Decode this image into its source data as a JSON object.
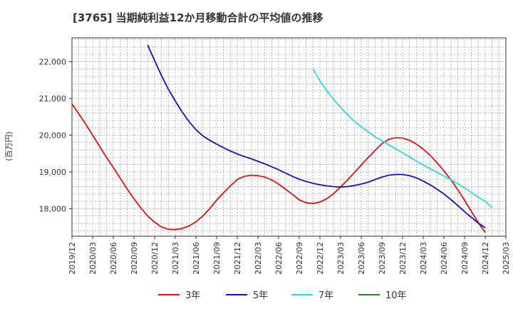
{
  "chart_data": {
    "type": "line",
    "title": "[3765]  当期純利益12か月移動合計の平均値の推移",
    "ylabel": "(百万円)",
    "xlabel": "",
    "ylim": [
      17250,
      22650
    ],
    "yticks": [
      18000,
      19000,
      20000,
      21000,
      22000
    ],
    "ytick_labels": [
      "18,000",
      "19,000",
      "20,000",
      "21,000",
      "22,000"
    ],
    "xlim": [
      "2019-12",
      "2025-03"
    ],
    "xticks": [
      "2019/12",
      "2020/03",
      "2020/06",
      "2020/09",
      "2020/12",
      "2021/03",
      "2021/06",
      "2021/09",
      "2021/12",
      "2022/03",
      "2022/06",
      "2022/09",
      "2022/12",
      "2023/03",
      "2023/06",
      "2023/09",
      "2023/12",
      "2024/03",
      "2024/06",
      "2024/09",
      "2024/12",
      "2025/03"
    ],
    "grid": true,
    "legend_position": "bottom",
    "series": [
      {
        "name": "3年",
        "color": "#dd1111",
        "points": [
          [
            "2019-12",
            20850
          ],
          [
            "2020-01",
            20580
          ],
          [
            "2020-02",
            20300
          ],
          [
            "2020-03",
            20000
          ],
          [
            "2020-04",
            19700
          ],
          [
            "2020-05",
            19400
          ],
          [
            "2020-06",
            19120
          ],
          [
            "2020-07",
            18830
          ],
          [
            "2020-08",
            18540
          ],
          [
            "2020-09",
            18270
          ],
          [
            "2020-10",
            18020
          ],
          [
            "2020-11",
            17800
          ],
          [
            "2020-12",
            17630
          ],
          [
            "2021-01",
            17500
          ],
          [
            "2021-02",
            17440
          ],
          [
            "2021-03",
            17430
          ],
          [
            "2021-04",
            17460
          ],
          [
            "2021-05",
            17530
          ],
          [
            "2021-06",
            17640
          ],
          [
            "2021-07",
            17800
          ],
          [
            "2021-08",
            18000
          ],
          [
            "2021-09",
            18230
          ],
          [
            "2021-10",
            18430
          ],
          [
            "2021-11",
            18620
          ],
          [
            "2021-12",
            18790
          ],
          [
            "2022-01",
            18880
          ],
          [
            "2022-02",
            18910
          ],
          [
            "2022-03",
            18900
          ],
          [
            "2022-04",
            18860
          ],
          [
            "2022-05",
            18780
          ],
          [
            "2022-06",
            18670
          ],
          [
            "2022-07",
            18530
          ],
          [
            "2022-08",
            18390
          ],
          [
            "2022-09",
            18240
          ],
          [
            "2022-10",
            18160
          ],
          [
            "2022-11",
            18140
          ],
          [
            "2022-12",
            18180
          ],
          [
            "2023-01",
            18270
          ],
          [
            "2023-02",
            18410
          ],
          [
            "2023-03",
            18590
          ],
          [
            "2023-04",
            18780
          ],
          [
            "2023-05",
            18980
          ],
          [
            "2023-06",
            19190
          ],
          [
            "2023-07",
            19390
          ],
          [
            "2023-08",
            19580
          ],
          [
            "2023-09",
            19770
          ],
          [
            "2023-10",
            19890
          ],
          [
            "2023-11",
            19930
          ],
          [
            "2023-12",
            19920
          ],
          [
            "2024-01",
            19860
          ],
          [
            "2024-02",
            19760
          ],
          [
            "2024-03",
            19620
          ],
          [
            "2024-04",
            19450
          ],
          [
            "2024-05",
            19250
          ],
          [
            "2024-06",
            19030
          ],
          [
            "2024-07",
            18790
          ],
          [
            "2024-08",
            18520
          ],
          [
            "2024-09",
            18230
          ],
          [
            "2024-10",
            17920
          ],
          [
            "2024-11",
            17620
          ],
          [
            "2024-12",
            17350
          ]
        ]
      },
      {
        "name": "5年",
        "color": "#1010bb",
        "points": [
          [
            "2020-11",
            22450
          ],
          [
            "2020-12",
            22030
          ],
          [
            "2021-01",
            21620
          ],
          [
            "2021-02",
            21250
          ],
          [
            "2021-03",
            20930
          ],
          [
            "2021-04",
            20630
          ],
          [
            "2021-05",
            20370
          ],
          [
            "2021-06",
            20150
          ],
          [
            "2021-07",
            19980
          ],
          [
            "2021-08",
            19860
          ],
          [
            "2021-09",
            19760
          ],
          [
            "2021-10",
            19660
          ],
          [
            "2021-11",
            19570
          ],
          [
            "2021-12",
            19490
          ],
          [
            "2022-01",
            19420
          ],
          [
            "2022-02",
            19360
          ],
          [
            "2022-03",
            19290
          ],
          [
            "2022-04",
            19220
          ],
          [
            "2022-05",
            19140
          ],
          [
            "2022-06",
            19060
          ],
          [
            "2022-07",
            18970
          ],
          [
            "2022-08",
            18880
          ],
          [
            "2022-09",
            18800
          ],
          [
            "2022-10",
            18740
          ],
          [
            "2022-11",
            18690
          ],
          [
            "2022-12",
            18650
          ],
          [
            "2023-01",
            18620
          ],
          [
            "2023-02",
            18600
          ],
          [
            "2023-03",
            18590
          ],
          [
            "2023-04",
            18600
          ],
          [
            "2023-05",
            18630
          ],
          [
            "2023-06",
            18670
          ],
          [
            "2023-07",
            18720
          ],
          [
            "2023-08",
            18790
          ],
          [
            "2023-09",
            18860
          ],
          [
            "2023-10",
            18910
          ],
          [
            "2023-11",
            18930
          ],
          [
            "2023-12",
            18930
          ],
          [
            "2024-01",
            18900
          ],
          [
            "2024-02",
            18840
          ],
          [
            "2024-03",
            18750
          ],
          [
            "2024-04",
            18650
          ],
          [
            "2024-05",
            18530
          ],
          [
            "2024-06",
            18400
          ],
          [
            "2024-07",
            18250
          ],
          [
            "2024-08",
            18090
          ],
          [
            "2024-09",
            17920
          ],
          [
            "2024-10",
            17760
          ],
          [
            "2024-11",
            17610
          ],
          [
            "2024-12",
            17480
          ]
        ]
      },
      {
        "name": "7年",
        "color": "#22dddd",
        "points": [
          [
            "2022-11",
            21800
          ],
          [
            "2022-12",
            21480
          ],
          [
            "2023-01",
            21210
          ],
          [
            "2023-02",
            20970
          ],
          [
            "2023-03",
            20760
          ],
          [
            "2023-04",
            20560
          ],
          [
            "2023-05",
            20380
          ],
          [
            "2023-06",
            20230
          ],
          [
            "2023-07",
            20090
          ],
          [
            "2023-08",
            19960
          ],
          [
            "2023-09",
            19850
          ],
          [
            "2023-10",
            19740
          ],
          [
            "2023-11",
            19630
          ],
          [
            "2023-12",
            19520
          ],
          [
            "2024-01",
            19410
          ],
          [
            "2024-02",
            19300
          ],
          [
            "2024-03",
            19190
          ],
          [
            "2024-04",
            19090
          ],
          [
            "2024-05",
            18990
          ],
          [
            "2024-06",
            18890
          ],
          [
            "2024-07",
            18790
          ],
          [
            "2024-08",
            18680
          ],
          [
            "2024-09",
            18570
          ],
          [
            "2024-10",
            18440
          ],
          [
            "2024-11",
            18310
          ],
          [
            "2024-12",
            18200
          ],
          [
            "2025-01",
            18030
          ]
        ]
      },
      {
        "name": "10年",
        "color": "#228822",
        "points": []
      }
    ]
  }
}
